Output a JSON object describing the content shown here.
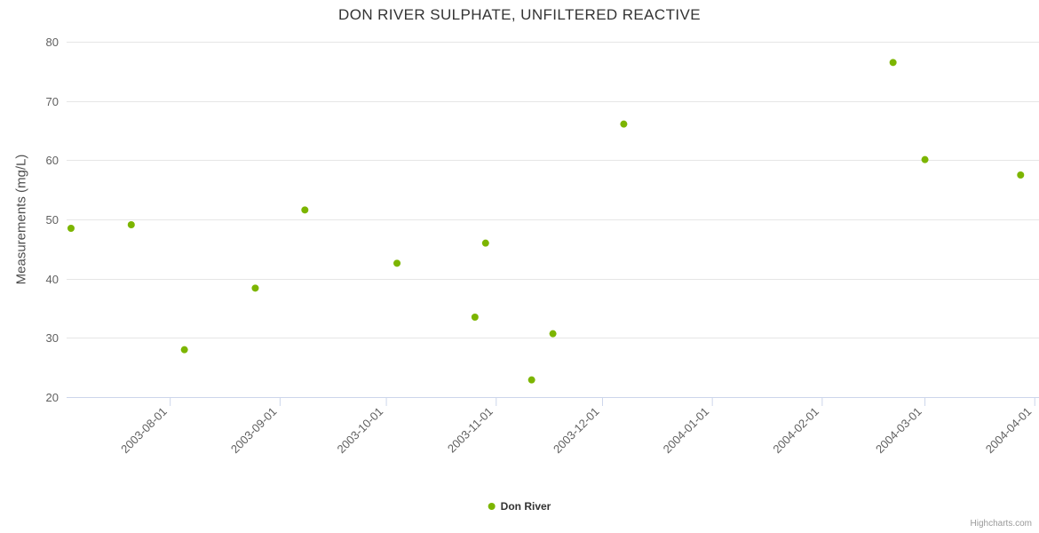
{
  "legend": {
    "label": "Don River"
  },
  "credit": "Highcharts.com",
  "colors": {
    "point": "#7cb500",
    "grid": "#e6e6e6",
    "axis_line": "#ccd6eb",
    "tick_label": "#606060",
    "title": "#333333"
  },
  "chart_data": {
    "type": "scatter",
    "title": "DON RIVER SULPHATE, UNFILTERED REACTIVE",
    "xlabel": "",
    "ylabel": "Measurements (mg/L)",
    "ylim": [
      20,
      80
    ],
    "yticks": [
      20,
      30,
      40,
      50,
      60,
      70,
      80
    ],
    "xticks": [
      "2003-08-01",
      "2003-09-01",
      "2003-10-01",
      "2003-11-01",
      "2003-12-01",
      "2004-01-01",
      "2004-02-01",
      "2004-03-01",
      "2004-04-01"
    ],
    "grid": true,
    "legend_position": "bottom",
    "series": [
      {
        "name": "Don River",
        "color": "#7cb500",
        "points": [
          {
            "date": "2003-07-04",
            "value": 48.5
          },
          {
            "date": "2003-07-21",
            "value": 49.1
          },
          {
            "date": "2003-08-05",
            "value": 28.0
          },
          {
            "date": "2003-08-25",
            "value": 38.4
          },
          {
            "date": "2003-09-08",
            "value": 51.6
          },
          {
            "date": "2003-10-04",
            "value": 42.6
          },
          {
            "date": "2003-10-26",
            "value": 33.5
          },
          {
            "date": "2003-10-29",
            "value": 46.0
          },
          {
            "date": "2003-11-11",
            "value": 22.9
          },
          {
            "date": "2003-11-17",
            "value": 30.7
          },
          {
            "date": "2003-12-07",
            "value": 66.1
          },
          {
            "date": "2004-02-21",
            "value": 76.5
          },
          {
            "date": "2004-03-01",
            "value": 60.1
          },
          {
            "date": "2004-03-28",
            "value": 57.5
          }
        ]
      }
    ]
  }
}
